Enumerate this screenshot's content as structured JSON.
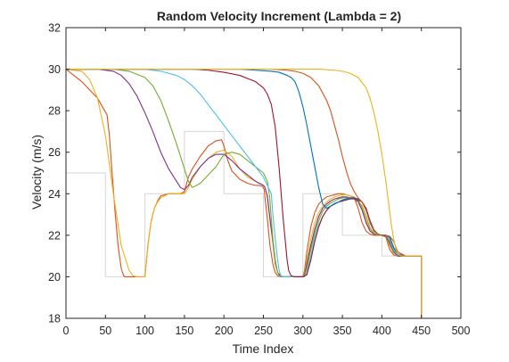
{
  "chart_data": {
    "type": "line",
    "title": "Random Velocity Increment (Lambda = 2)",
    "xlabel": "Time Index",
    "ylabel": "Velocity (m/s)",
    "xlim": [
      0,
      500
    ],
    "ylim": [
      18,
      32
    ],
    "xticks": [
      "0",
      "50",
      "100",
      "150",
      "200",
      "250",
      "300",
      "350",
      "400",
      "450",
      "500"
    ],
    "yticks": [
      "18",
      "20",
      "22",
      "24",
      "26",
      "28",
      "30",
      "32"
    ],
    "grid": false,
    "legend": "none",
    "reference_step": {
      "color": "#d6d6d6",
      "x": [
        0,
        50,
        50,
        100,
        100,
        150,
        150,
        200,
        200,
        250,
        250,
        300,
        300,
        350,
        350,
        400,
        400,
        450,
        450
      ],
      "y": [
        25,
        25,
        20,
        20,
        24,
        24,
        27,
        27,
        24,
        24,
        20,
        20,
        24,
        24,
        22,
        22,
        21,
        21,
        18
      ]
    },
    "series": [
      {
        "color": "#d95319",
        "x": [
          0,
          20,
          40,
          52,
          55,
          58,
          62,
          66,
          70,
          73,
          75,
          77,
          80,
          85,
          90,
          95,
          100,
          104,
          108,
          112,
          116,
          120,
          130,
          140,
          145,
          150,
          155,
          160,
          170,
          180,
          190,
          197,
          200,
          205,
          210,
          220,
          230,
          240,
          245,
          249,
          251,
          252,
          255,
          258,
          262,
          265,
          268,
          272,
          275,
          278,
          282,
          290,
          295,
          298,
          300,
          302,
          305,
          310,
          315,
          320,
          325,
          330,
          335,
          340,
          345,
          350,
          355,
          360,
          365,
          370,
          375,
          380,
          385,
          390,
          395,
          400,
          405,
          410,
          415,
          420,
          430,
          440,
          450,
          450
        ],
        "y": [
          30,
          29.4,
          28.6,
          27.8,
          26.8,
          25.2,
          23.2,
          21.5,
          20.4,
          20.05,
          20,
          20,
          20,
          20,
          20,
          20,
          20,
          21.6,
          22.7,
          23.3,
          23.65,
          23.9,
          24,
          24,
          24,
          24.1,
          24.8,
          25.2,
          25.8,
          26.3,
          26.55,
          26.6,
          26.3,
          25.6,
          25.1,
          24.7,
          24.5,
          24.4,
          24.4,
          24.35,
          24.2,
          23.8,
          22.8,
          21.6,
          20.6,
          20.2,
          20.05,
          20,
          20,
          20,
          20,
          20,
          20,
          20,
          20,
          20.3,
          21.2,
          22.4,
          23.1,
          23.5,
          23.7,
          23.85,
          23.9,
          23.95,
          24,
          24,
          23.95,
          23.9,
          23.8,
          23.3,
          22.6,
          22.2,
          22.05,
          22,
          22,
          22,
          21.9,
          21.3,
          21.05,
          21,
          21,
          21,
          21,
          18
        ]
      },
      {
        "color": "#edb120",
        "x": [
          0,
          20,
          30,
          40,
          50,
          60,
          70,
          80,
          85,
          90,
          95,
          98,
          100,
          102,
          105,
          108,
          112,
          116,
          120,
          130,
          140,
          150,
          155,
          160,
          170,
          180,
          190,
          200,
          210,
          220,
          230,
          240,
          245,
          248,
          250,
          252,
          255,
          258,
          262,
          265,
          268,
          272,
          275,
          278,
          282,
          290,
          295,
          300,
          302,
          305,
          310,
          315,
          320,
          325,
          330,
          335,
          340,
          345,
          350,
          355,
          360,
          365,
          370,
          375,
          380,
          385,
          390,
          395,
          400,
          405,
          410,
          415,
          420,
          430,
          440,
          450,
          450
        ],
        "y": [
          30,
          29.9,
          29.5,
          28.6,
          26.8,
          24,
          21.5,
          20.3,
          20.05,
          20,
          20,
          20,
          20,
          20.8,
          21.9,
          22.7,
          23.3,
          23.6,
          23.8,
          24,
          24,
          24,
          24.3,
          24.7,
          25.3,
          25.7,
          26,
          26.1,
          25.8,
          25.2,
          24.8,
          24.6,
          24.5,
          24.45,
          24.4,
          24.3,
          23.8,
          22.8,
          21.6,
          20.6,
          20.2,
          20.05,
          20,
          20,
          20,
          20,
          20,
          20,
          20.2,
          20.8,
          21.8,
          22.6,
          23.1,
          23.4,
          23.6,
          23.75,
          23.85,
          23.9,
          23.95,
          23.95,
          23.9,
          23.85,
          23.7,
          23.3,
          22.7,
          22.25,
          22.05,
          22,
          22,
          21.9,
          21.5,
          21.1,
          21,
          21,
          21,
          21,
          18
        ]
      },
      {
        "color": "#7e2f8e",
        "x": [
          0,
          40,
          60,
          70,
          80,
          90,
          100,
          110,
          120,
          130,
          140,
          145,
          150,
          155,
          160,
          170,
          180,
          190,
          200,
          210,
          220,
          230,
          240,
          245,
          250,
          252,
          255,
          258,
          262,
          265,
          268,
          272,
          275,
          280,
          285,
          290,
          295,
          300,
          302,
          305,
          310,
          315,
          320,
          325,
          330,
          335,
          340,
          345,
          350,
          355,
          360,
          365,
          370,
          375,
          380,
          385,
          390,
          395,
          400,
          405,
          410,
          415,
          420,
          430,
          440,
          450,
          450
        ],
        "y": [
          30,
          30,
          29.9,
          29.7,
          29.3,
          28.7,
          27.9,
          27,
          26,
          25.2,
          24.6,
          24.3,
          24.2,
          24.4,
          24.8,
          25.3,
          25.7,
          25.9,
          25.9,
          25.6,
          25.2,
          24.9,
          24.6,
          24.5,
          24.4,
          24.3,
          23.9,
          22.9,
          21.7,
          20.7,
          20.2,
          20.05,
          20,
          20,
          20,
          20,
          20,
          20,
          20.1,
          20.6,
          21.5,
          22.3,
          22.9,
          23.3,
          23.5,
          23.65,
          23.75,
          23.8,
          23.85,
          23.85,
          23.8,
          23.75,
          23.6,
          23.2,
          22.6,
          22.2,
          22.05,
          22,
          22,
          21.95,
          21.6,
          21.2,
          21,
          21,
          21,
          21,
          18
        ]
      },
      {
        "color": "#77ac30",
        "x": [
          0,
          60,
          80,
          100,
          110,
          120,
          130,
          140,
          150,
          155,
          160,
          170,
          180,
          190,
          200,
          210,
          220,
          230,
          240,
          250,
          255,
          258,
          260,
          262,
          265,
          268,
          270,
          272,
          275,
          278,
          280,
          285,
          290,
          295,
          300,
          302,
          305,
          310,
          315,
          320,
          325,
          330,
          335,
          340,
          345,
          350,
          355,
          360,
          365,
          370,
          375,
          380,
          385,
          390,
          395,
          400,
          405,
          410,
          415,
          420,
          430,
          440,
          450,
          450
        ],
        "y": [
          30,
          30,
          29.9,
          29.6,
          29.2,
          28.5,
          27.5,
          26.4,
          25.2,
          24.6,
          24.3,
          24.5,
          24.9,
          25.3,
          25.9,
          26,
          25.9,
          25.6,
          25.3,
          25,
          24.6,
          23.8,
          22.8,
          21.8,
          20.8,
          20.2,
          20.05,
          20,
          20,
          20,
          20,
          20,
          20,
          20,
          20,
          20.05,
          20.4,
          21.3,
          22.1,
          22.7,
          23.15,
          23.4,
          23.55,
          23.65,
          23.75,
          23.8,
          23.8,
          23.8,
          23.75,
          23.65,
          23.4,
          22.9,
          22.35,
          22.1,
          22,
          22,
          22,
          21.7,
          21.25,
          21.05,
          21,
          21,
          21,
          18
        ]
      },
      {
        "color": "#4dbeee",
        "x": [
          0,
          100,
          120,
          140,
          150,
          160,
          170,
          180,
          190,
          200,
          210,
          220,
          230,
          240,
          250,
          260,
          262,
          265,
          268,
          270,
          272,
          275,
          278,
          280,
          285,
          290,
          295,
          300,
          302,
          305,
          310,
          315,
          320,
          325,
          330,
          335,
          340,
          345,
          350,
          355,
          360,
          365,
          370,
          375,
          380,
          385,
          390,
          395,
          400,
          405,
          410,
          415,
          420,
          430,
          440,
          450,
          450
        ],
        "y": [
          30,
          30,
          29.9,
          29.7,
          29.5,
          29.2,
          28.8,
          28.3,
          27.8,
          27.3,
          26.8,
          26.3,
          25.8,
          25.3,
          24.8,
          24,
          23,
          21.8,
          20.8,
          20.3,
          20.05,
          20,
          20,
          20,
          20,
          20,
          20,
          20,
          20,
          20.2,
          21,
          21.9,
          22.5,
          22.9,
          23.2,
          23.4,
          23.55,
          23.6,
          23.7,
          23.75,
          23.8,
          23.8,
          23.75,
          23.6,
          23.2,
          22.6,
          22.2,
          22.05,
          22,
          22,
          21.8,
          21.3,
          21.05,
          21,
          21,
          21,
          18
        ]
      },
      {
        "color": "#a2142f",
        "x": [
          0,
          160,
          180,
          200,
          220,
          240,
          250,
          255,
          260,
          265,
          270,
          275,
          278,
          280,
          282,
          285,
          290,
          295,
          300,
          305,
          310,
          315,
          320,
          325,
          330,
          335,
          340,
          345,
          350,
          355,
          360,
          365,
          370,
          375,
          380,
          385,
          390,
          395,
          400,
          405,
          410,
          415,
          420,
          430,
          440,
          450,
          450
        ],
        "y": [
          30,
          30,
          29.95,
          29.85,
          29.7,
          29.4,
          29.1,
          28.8,
          28.3,
          27.2,
          25.2,
          22.8,
          21.6,
          20.8,
          20.3,
          20.05,
          20,
          20,
          20,
          20.1,
          20.8,
          21.7,
          22.4,
          22.9,
          23.2,
          23.4,
          23.5,
          23.6,
          23.65,
          23.7,
          23.75,
          23.75,
          23.7,
          23.6,
          23.3,
          22.7,
          22.25,
          22.05,
          22,
          22,
          21.9,
          21.4,
          21.1,
          21,
          21,
          21,
          18
        ]
      },
      {
        "color": "#0072bd",
        "x": [
          0,
          220,
          240,
          260,
          270,
          280,
          285,
          290,
          295,
          300,
          305,
          310,
          315,
          320,
          325,
          330,
          335,
          340,
          345,
          350,
          355,
          360,
          365,
          370,
          375,
          380,
          385,
          390,
          395,
          400,
          405,
          410,
          415,
          420,
          430,
          440,
          450,
          450
        ],
        "y": [
          30,
          30,
          29.95,
          29.9,
          29.85,
          29.7,
          29.6,
          29.4,
          28.9,
          28.2,
          27.3,
          26.3,
          25.3,
          24.3,
          23.5,
          23.3,
          23.4,
          23.5,
          23.6,
          23.7,
          23.75,
          23.8,
          23.8,
          23.75,
          23.6,
          23.2,
          22.6,
          22.2,
          22.05,
          22,
          22,
          21.9,
          21.4,
          21.1,
          21,
          21,
          21,
          18
        ]
      },
      {
        "color": "#d95319",
        "x": [
          0,
          240,
          260,
          280,
          290,
          300,
          310,
          320,
          330,
          335,
          340,
          345,
          350,
          355,
          360,
          365,
          370,
          375,
          380,
          385,
          390,
          395,
          400,
          405,
          410,
          415,
          420,
          430,
          440,
          450,
          450
        ],
        "y": [
          30,
          30,
          30,
          29.95,
          29.9,
          29.8,
          29.6,
          29.2,
          28.5,
          28,
          27.3,
          26.6,
          25.8,
          25.1,
          24.5,
          24.1,
          23.8,
          23.6,
          23.2,
          22.6,
          22.2,
          22.05,
          22,
          22,
          21.95,
          21.7,
          21.2,
          21,
          21,
          21,
          18
        ]
      },
      {
        "color": "#edb120",
        "x": [
          0,
          300,
          320,
          340,
          350,
          360,
          370,
          380,
          385,
          390,
          395,
          400,
          405,
          410,
          412,
          415,
          418,
          420,
          425,
          430,
          440,
          450,
          450
        ],
        "y": [
          30,
          30,
          30,
          29.95,
          29.9,
          29.8,
          29.6,
          29.1,
          28.6,
          27.9,
          27,
          25.9,
          24.6,
          23.1,
          22.5,
          21.8,
          21.3,
          21.1,
          21,
          21,
          21,
          21,
          18
        ]
      }
    ]
  }
}
